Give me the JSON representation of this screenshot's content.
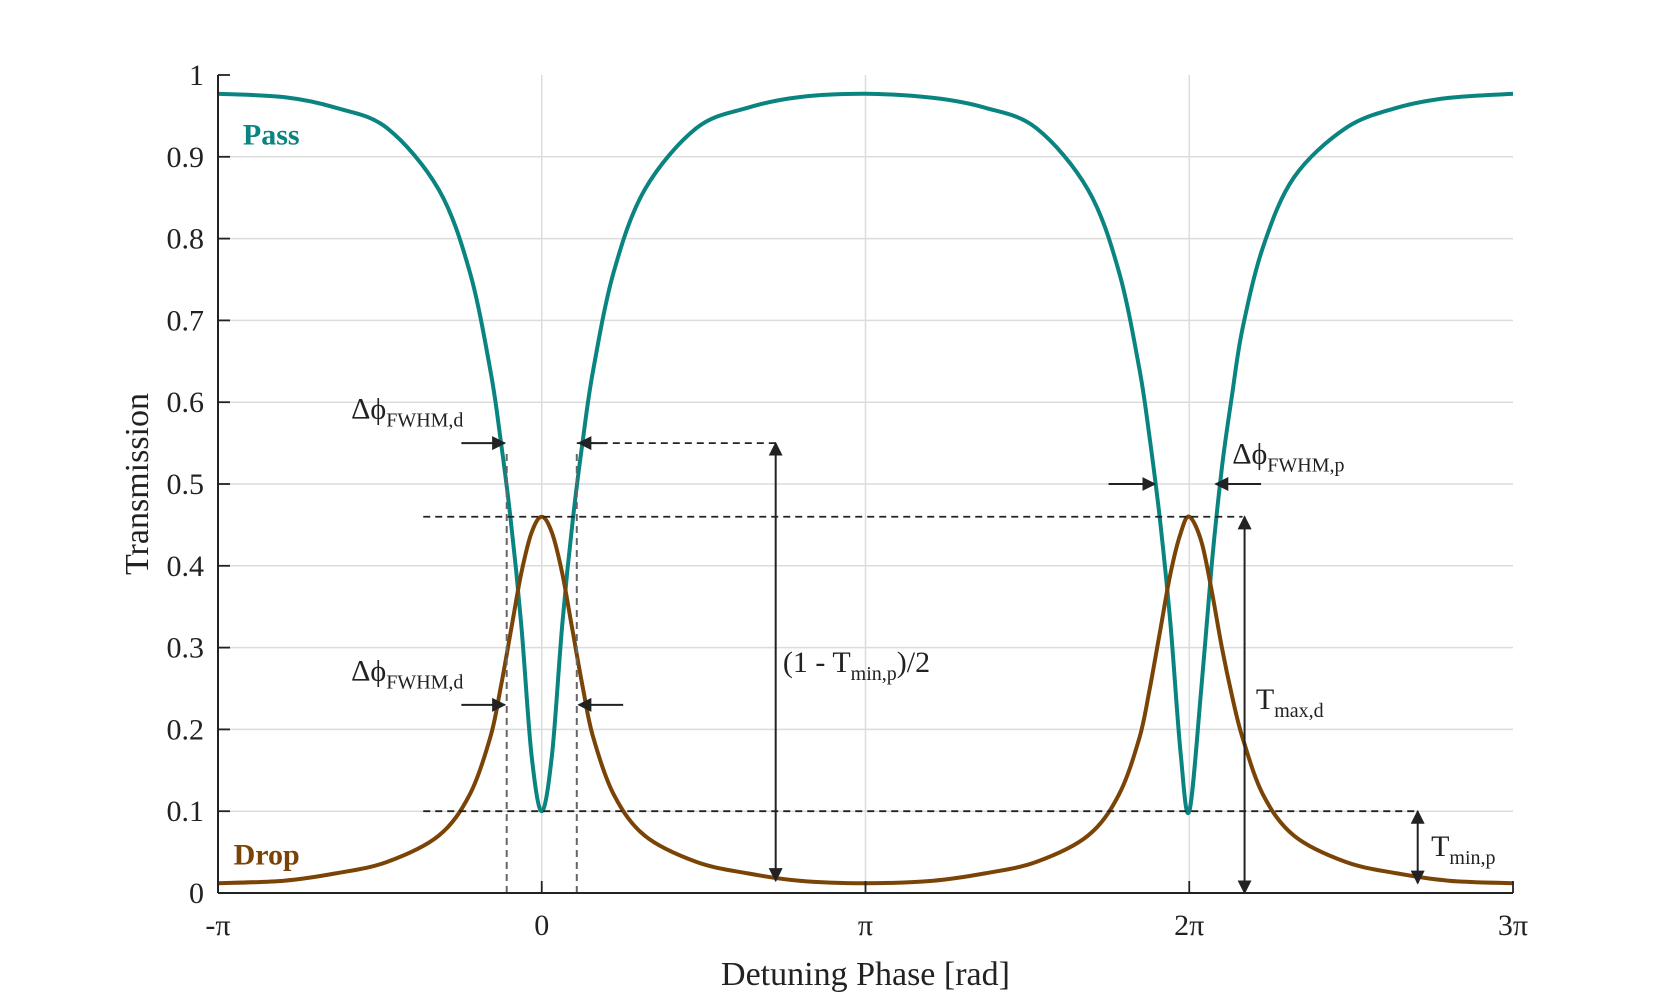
{
  "chart_data": {
    "type": "line",
    "xlabel": "Detuning Phase [rad]",
    "ylabel": "Transmission",
    "xlim": [
      -3.14159,
      9.42478
    ],
    "ylim": [
      0,
      1
    ],
    "grid": true,
    "x_ticks": [
      {
        "value": -3.14159,
        "label": "-π"
      },
      {
        "value": 0,
        "label": "0"
      },
      {
        "value": 3.14159,
        "label": "π"
      },
      {
        "value": 6.28319,
        "label": "2π"
      },
      {
        "value": 9.42478,
        "label": "3π"
      }
    ],
    "y_ticks": [
      {
        "value": 0,
        "label": "0"
      },
      {
        "value": 0.1,
        "label": "0.1"
      },
      {
        "value": 0.2,
        "label": "0.2"
      },
      {
        "value": 0.3,
        "label": "0.3"
      },
      {
        "value": 0.4,
        "label": "0.4"
      },
      {
        "value": 0.5,
        "label": "0.5"
      },
      {
        "value": 0.6,
        "label": "0.6"
      },
      {
        "value": 0.7,
        "label": "0.7"
      },
      {
        "value": 0.8,
        "label": "0.8"
      },
      {
        "value": 0.9,
        "label": "0.9"
      },
      {
        "value": 1,
        "label": "1"
      }
    ],
    "series": [
      {
        "name": "Pass",
        "color": "#0a8481",
        "x": [
          -3.1416,
          -2.5,
          -2.0,
          -1.5,
          -1.0,
          -0.7,
          -0.5,
          -0.4,
          -0.3,
          -0.2,
          -0.1,
          0,
          0.1,
          0.2,
          0.3,
          0.4,
          0.5,
          0.7,
          1.0,
          1.5,
          2.0,
          2.5,
          3.1416,
          3.8,
          4.3,
          4.8,
          5.3,
          5.6,
          5.8,
          5.9,
          6.0,
          6.1,
          6.2,
          6.2832,
          6.4,
          6.5,
          6.6,
          6.7,
          6.8,
          7.0,
          7.3,
          7.8,
          8.3,
          8.8,
          9.4248
        ],
        "values": [
          0.977,
          0.973,
          0.96,
          0.935,
          0.86,
          0.76,
          0.64,
          0.555,
          0.455,
          0.33,
          0.17,
          0.1,
          0.17,
          0.33,
          0.455,
          0.555,
          0.64,
          0.76,
          0.86,
          0.935,
          0.96,
          0.973,
          0.977,
          0.972,
          0.96,
          0.935,
          0.86,
          0.76,
          0.64,
          0.555,
          0.455,
          0.33,
          0.17,
          0.1,
          0.25,
          0.4,
          0.52,
          0.61,
          0.69,
          0.79,
          0.875,
          0.935,
          0.96,
          0.972,
          0.977
        ]
      },
      {
        "name": "Drop",
        "color": "#7a4407",
        "x": [
          -3.1416,
          -2.5,
          -2.0,
          -1.5,
          -1.0,
          -0.7,
          -0.5,
          -0.4,
          -0.3,
          -0.2,
          -0.1,
          0,
          0.1,
          0.2,
          0.3,
          0.4,
          0.5,
          0.7,
          1.0,
          1.5,
          2.0,
          2.5,
          3.1416,
          3.8,
          4.3,
          4.8,
          5.3,
          5.6,
          5.8,
          5.9,
          6.0,
          6.1,
          6.2,
          6.2832,
          6.4,
          6.5,
          6.6,
          6.7,
          6.8,
          7.0,
          7.3,
          7.8,
          8.3,
          8.8,
          9.4248
        ],
        "values": [
          0.012,
          0.015,
          0.024,
          0.038,
          0.07,
          0.12,
          0.19,
          0.25,
          0.32,
          0.39,
          0.44,
          0.46,
          0.44,
          0.39,
          0.32,
          0.25,
          0.19,
          0.12,
          0.07,
          0.038,
          0.024,
          0.015,
          0.012,
          0.015,
          0.024,
          0.038,
          0.07,
          0.12,
          0.19,
          0.25,
          0.32,
          0.39,
          0.44,
          0.46,
          0.43,
          0.37,
          0.3,
          0.24,
          0.19,
          0.12,
          0.07,
          0.038,
          0.024,
          0.015,
          0.012
        ]
      }
    ],
    "reference_lines": {
      "h_top": {
        "y": 0.46,
        "x_from": -1.15,
        "x_to": 6.8
      },
      "h_bottom": {
        "y": 0.1,
        "x_from": -1.15,
        "x_to": 8.5
      },
      "v_left": {
        "x": -0.34,
        "y_from": 0,
        "y_to": 0.54
      },
      "v_right": {
        "x": 0.34,
        "y_from": 0,
        "y_to": 0.54
      },
      "top_arrow": {
        "y": 0.55,
        "x_from": 0.34,
        "x_to": 2.27
      },
      "fwhm_d_top_arrow": {
        "y": 0.55,
        "x_from": -0.78,
        "x_to": -0.34
      },
      "fwhm_d_bottom_arrows": {
        "y": 0.23,
        "left_from": -0.78,
        "left_to": -0.34,
        "right_from": 0.79,
        "right_to": 0.34
      },
      "fwhm_p_arrows": {
        "y": 0.5,
        "left_from": 5.5,
        "left_to": 5.95,
        "right_from": 6.98,
        "right_to": 6.54
      },
      "v_arrow_half": {
        "x": 2.27,
        "y_from": 0.015,
        "y_to": 0.55
      },
      "v_arrow_tmax": {
        "x": 6.82,
        "y_from": 0.0,
        "y_to": 0.46
      },
      "v_arrow_tmin": {
        "x": 8.5,
        "y_from": 0.012,
        "y_to": 0.1
      }
    },
    "annotations": {
      "fwhm_d_top": {
        "main": "Δϕ",
        "sub": "FWHM,d"
      },
      "fwhm_d_bottom": {
        "main": "Δϕ",
        "sub": "FWHM,d"
      },
      "fwhm_p": {
        "main": "Δϕ",
        "sub": "FWHM,p"
      },
      "half_depth": {
        "pre": "(1 - T",
        "sub": "min,p",
        "post": ")/2"
      },
      "tmax": {
        "main": "T",
        "sub": "max,d"
      },
      "tmin": {
        "main": "T",
        "sub": "min,p"
      }
    }
  }
}
